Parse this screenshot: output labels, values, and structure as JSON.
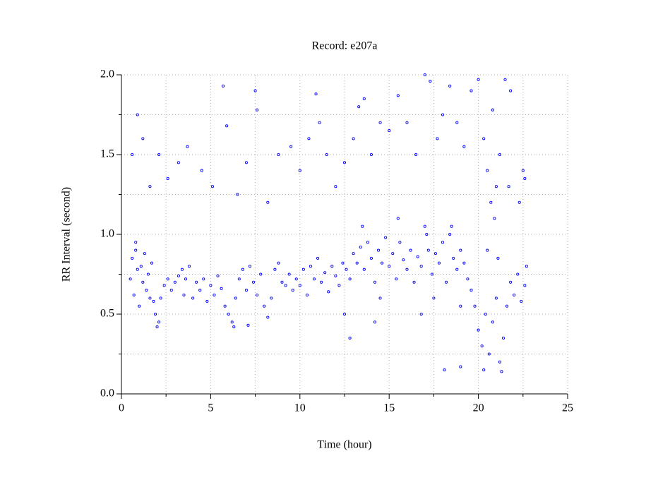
{
  "chart_data": {
    "type": "scatter",
    "title": "Record:  e207a",
    "x_label": "Time (hour)",
    "y_label": "RR Interval (second)",
    "color": "#0000ff",
    "grid": true,
    "xlim": [
      0,
      25
    ],
    "xticks": [
      0,
      5,
      10,
      15,
      20,
      25
    ],
    "xminor": [
      2.5,
      7.5,
      12.5,
      17.5,
      22.5
    ],
    "ylim": [
      0,
      2
    ],
    "yticks": [
      {
        "value": 0,
        "label": "0.0"
      },
      {
        "value": 0.5,
        "label": "0.5"
      },
      {
        "value": 1,
        "label": "1.0"
      },
      {
        "value": 1.5,
        "label": "1.5"
      },
      {
        "value": 2,
        "label": "2.0"
      }
    ],
    "yminor": [
      0.25,
      0.75,
      1.25,
      1.75
    ],
    "x": [
      0.5,
      0.6,
      0.7,
      0.8,
      0.9,
      1.0,
      1.1,
      1.2,
      1.3,
      1.4,
      1.5,
      1.6,
      1.7,
      1.8,
      1.9,
      2.0,
      2.1,
      2.2,
      2.4,
      2.6,
      2.8,
      3.0,
      3.2,
      3.4,
      3.6,
      3.8,
      4.0,
      4.2,
      4.4,
      4.6,
      4.8,
      5.0,
      5.2,
      5.4,
      5.6,
      5.8,
      6.0,
      6.2,
      6.4,
      6.6,
      6.8,
      7.0,
      7.2,
      7.4,
      7.6,
      7.8,
      8.0,
      8.2,
      8.4,
      8.6,
      8.8,
      9.0,
      9.2,
      9.4,
      9.6,
      9.8,
      10.0,
      10.2,
      10.4,
      10.6,
      10.8,
      11.0,
      11.2,
      11.4,
      11.6,
      11.8,
      12.0,
      12.2,
      12.4,
      12.6,
      12.8,
      13.0,
      13.2,
      13.4,
      13.6,
      13.8,
      14.0,
      14.2,
      14.4,
      14.6,
      14.8,
      15.0,
      15.2,
      15.4,
      15.6,
      15.8,
      16.0,
      16.2,
      16.4,
      16.6,
      16.8,
      17.0,
      17.2,
      17.4,
      17.6,
      17.8,
      18.0,
      18.2,
      18.4,
      18.6,
      18.8,
      19.0,
      19.2,
      19.4,
      19.6,
      19.8,
      20.0,
      20.2,
      20.4,
      20.6,
      20.8,
      21.0,
      21.2,
      21.4,
      21.6,
      21.8,
      22.0,
      22.2,
      22.4,
      22.6,
      22.7,
      0.8,
      3.5,
      6.3,
      7.1,
      13.5,
      15.5,
      17.1,
      18.5,
      20.5,
      20.9,
      21.1,
      20.3,
      21.3,
      17.5,
      19.0,
      14.5,
      12.5,
      20.7,
      21.7,
      22.5,
      0.6,
      0.9,
      1.2,
      1.6,
      2.1,
      2.6,
      3.2,
      3.7,
      4.5,
      5.1,
      5.7,
      5.9,
      6.5,
      7.0,
      7.5,
      7.6,
      8.2,
      8.8,
      9.5,
      10.0,
      10.5,
      10.9,
      11.1,
      11.5,
      12.0,
      12.5,
      13.0,
      13.3,
      13.6,
      14.0,
      14.5,
      15.0,
      15.5,
      16.0,
      16.5,
      17.0,
      17.3,
      17.7,
      18.0,
      18.4,
      18.8,
      19.2,
      19.6,
      20.0,
      20.3,
      20.5,
      20.8,
      21.0,
      21.2,
      21.5,
      21.8,
      22.3,
      22.6,
      12.8,
      14.2,
      16.8,
      18.1,
      19.0
    ],
    "values": [
      0.72,
      0.85,
      0.62,
      0.9,
      0.78,
      0.55,
      0.8,
      0.7,
      0.88,
      0.65,
      0.75,
      0.6,
      0.82,
      0.58,
      0.5,
      0.42,
      0.45,
      0.6,
      0.68,
      0.72,
      0.65,
      0.7,
      0.74,
      0.78,
      0.72,
      0.8,
      0.6,
      0.7,
      0.65,
      0.72,
      0.58,
      0.68,
      0.62,
      0.74,
      0.66,
      0.55,
      0.5,
      0.45,
      0.6,
      0.72,
      0.78,
      0.65,
      0.8,
      0.7,
      0.62,
      0.75,
      0.55,
      0.48,
      0.6,
      0.78,
      0.82,
      0.7,
      0.68,
      0.75,
      0.65,
      0.72,
      0.68,
      0.78,
      0.62,
      0.8,
      0.72,
      0.85,
      0.7,
      0.76,
      0.64,
      0.8,
      0.74,
      0.68,
      0.82,
      0.78,
      0.72,
      0.88,
      0.82,
      0.92,
      0.78,
      0.95,
      0.85,
      0.7,
      0.9,
      0.82,
      0.98,
      0.8,
      0.88,
      0.72,
      0.95,
      0.84,
      0.78,
      0.9,
      0.7,
      0.86,
      0.8,
      1.05,
      0.9,
      0.75,
      0.88,
      0.82,
      0.95,
      0.7,
      1.0,
      0.85,
      0.78,
      0.9,
      0.82,
      0.72,
      0.65,
      0.55,
      0.4,
      0.3,
      0.5,
      0.25,
      0.45,
      0.6,
      0.2,
      0.35,
      0.55,
      0.7,
      0.62,
      0.75,
      0.58,
      0.68,
      0.8,
      0.95,
      0.62,
      0.42,
      0.43,
      1.05,
      1.1,
      1.0,
      1.05,
      0.9,
      1.1,
      0.85,
      0.15,
      0.14,
      0.6,
      0.55,
      0.6,
      0.5,
      1.2,
      1.3,
      1.4,
      1.5,
      1.75,
      1.6,
      1.3,
      1.5,
      1.35,
      1.45,
      1.55,
      1.4,
      1.3,
      1.93,
      1.68,
      1.25,
      1.45,
      1.9,
      1.78,
      1.2,
      1.5,
      1.55,
      1.4,
      1.6,
      1.88,
      1.7,
      1.5,
      1.3,
      1.45,
      1.6,
      1.8,
      1.85,
      1.5,
      1.7,
      1.65,
      1.87,
      1.7,
      1.5,
      2.0,
      1.96,
      1.6,
      1.75,
      1.93,
      1.7,
      1.55,
      1.9,
      1.97,
      1.6,
      1.4,
      1.78,
      1.3,
      1.5,
      1.97,
      1.9,
      1.2,
      1.35,
      0.35,
      0.45,
      0.5,
      0.15,
      0.17
    ]
  }
}
